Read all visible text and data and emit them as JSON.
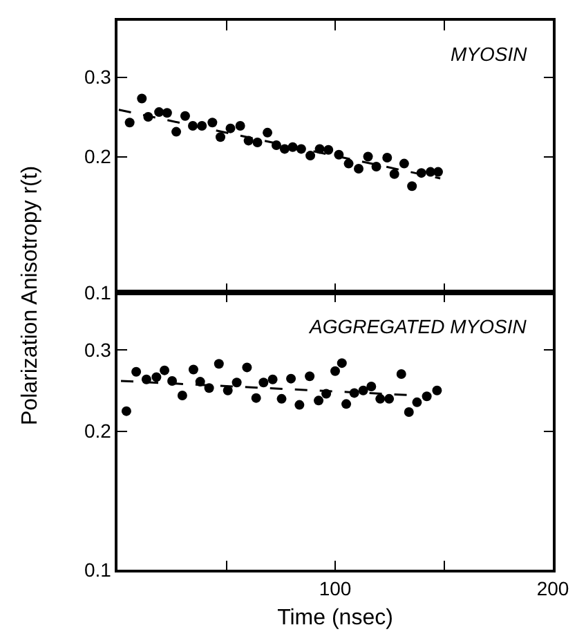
{
  "chart_data": [
    {
      "type": "scatter",
      "annotations": [
        "MYOSIN"
      ],
      "ylabel": "Polarization Anisotropy r(t)",
      "log": "y",
      "tick_labels": "y",
      "xlim": [
        0,
        200
      ],
      "xticks": [
        {
          "value": 50,
          "label": null
        },
        {
          "value": 100,
          "label": null
        },
        {
          "value": 150,
          "label": null
        }
      ],
      "ylim": [
        0.1,
        0.4
      ],
      "yticks": [
        0.1,
        0.2,
        0.3
      ],
      "series": [
        {
          "color": "#000000",
          "marker": "circle",
          "x": [
            5.6,
            11.2,
            14.1,
            19.1,
            22.8,
            27.0,
            31.1,
            34.6,
            38.8,
            43.6,
            47.3,
            51.9,
            56.4,
            60.2,
            64.3,
            68.9,
            73.0,
            76.8,
            80.5,
            84.4,
            88.6,
            92.9,
            96.9,
            101.7,
            106.2,
            110.8,
            115.1,
            118.9,
            123.9,
            127.2,
            131.7,
            135.3,
            139.6,
            143.8,
            147.3
          ],
          "values": [
            0.238,
            0.269,
            0.245,
            0.251,
            0.25,
            0.227,
            0.246,
            0.234,
            0.234,
            0.238,
            0.221,
            0.231,
            0.234,
            0.217,
            0.215,
            0.226,
            0.212,
            0.208,
            0.21,
            0.208,
            0.201,
            0.208,
            0.207,
            0.202,
            0.193,
            0.188,
            0.2,
            0.19,
            0.199,
            0.183,
            0.193,
            0.172,
            0.184,
            0.185,
            0.185
          ]
        },
        {
          "type": "line",
          "line_style": "dashed",
          "color": "#000000",
          "x": [
            0.6,
            148.3
          ],
          "values": [
            0.254,
            0.179
          ]
        }
      ]
    },
    {
      "type": "scatter",
      "annotations": [
        "AGGREGATED MYOSIN"
      ],
      "xlabel": "Time (nsec)",
      "log": "y",
      "xlim": [
        0,
        200
      ],
      "xticks": [
        {
          "value": 50,
          "label": null
        },
        100,
        {
          "value": 150,
          "label": null
        },
        200
      ],
      "ylim": [
        0.1,
        0.4
      ],
      "yticks": [
        0.1,
        0.2,
        0.3
      ],
      "series": [
        {
          "color": "#000000",
          "marker": "circle",
          "x": [
            4.1,
            8.6,
            13.3,
            17.9,
            21.6,
            25.1,
            29.8,
            34.9,
            38.0,
            42.1,
            46.6,
            50.7,
            54.8,
            59.5,
            63.7,
            67.1,
            71.3,
            75.4,
            79.7,
            83.6,
            88.3,
            92.4,
            95.9,
            100.0,
            103.1,
            105.1,
            108.8,
            112.9,
            116.6,
            120.7,
            124.8,
            130.4,
            133.9,
            137.6,
            142.1,
            146.8
          ],
          "values": [
            0.221,
            0.269,
            0.259,
            0.262,
            0.271,
            0.257,
            0.239,
            0.272,
            0.256,
            0.248,
            0.28,
            0.245,
            0.255,
            0.275,
            0.236,
            0.255,
            0.259,
            0.235,
            0.26,
            0.228,
            0.263,
            0.233,
            0.241,
            0.27,
            0.281,
            0.229,
            0.242,
            0.245,
            0.25,
            0.235,
            0.235,
            0.266,
            0.22,
            0.231,
            0.238,
            0.245
          ]
        },
        {
          "type": "line",
          "line_style": "dashed",
          "color": "#000000",
          "x": [
            1.6,
            137.6
          ],
          "values": [
            0.257,
            0.239
          ]
        }
      ]
    }
  ]
}
